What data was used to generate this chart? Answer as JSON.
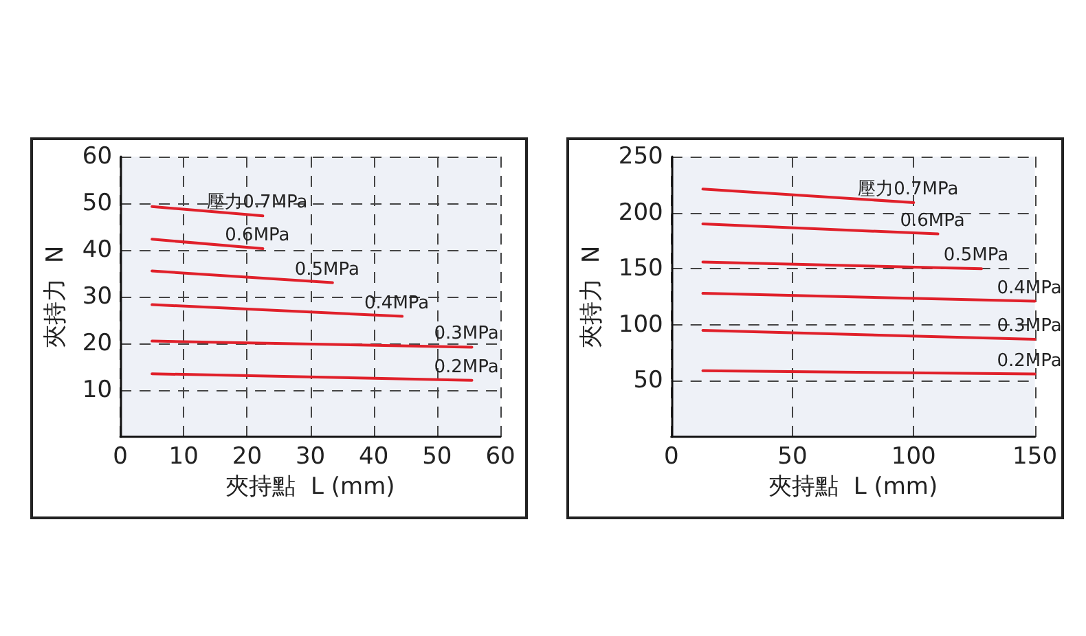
{
  "chart_data": [
    {
      "type": "line",
      "xlabel": "夾持點  L (mm)",
      "ylabel": "夾持力  N",
      "xlim": [
        0,
        60
      ],
      "ylim": [
        0,
        60
      ],
      "xticks": [
        0,
        10,
        20,
        30,
        40,
        50,
        60
      ],
      "yticks": [
        10,
        20,
        30,
        40,
        50,
        60
      ],
      "grid": true,
      "legend": false,
      "marker": "none",
      "line_style": "solid",
      "series": [
        {
          "name": "壓力0.7MPa",
          "color": "#e0202a",
          "x": [
            5,
            22.5
          ],
          "values": [
            49.3,
            47.3
          ]
        },
        {
          "name": "0.6MPa",
          "color": "#e0202a",
          "x": [
            5,
            22.5
          ],
          "values": [
            42.3,
            40.3
          ]
        },
        {
          "name": "0.5MPa",
          "color": "#e0202a",
          "x": [
            5,
            33.5
          ],
          "values": [
            35.5,
            33
          ]
        },
        {
          "name": "0.4MPa",
          "color": "#e0202a",
          "x": [
            5,
            44.5
          ],
          "values": [
            28.3,
            25.8
          ]
        },
        {
          "name": "0.3MPa",
          "color": "#e0202a",
          "x": [
            5,
            55.5
          ],
          "values": [
            20.5,
            19.2
          ]
        },
        {
          "name": "0.2MPa",
          "color": "#e0202a",
          "x": [
            5,
            55.5
          ],
          "values": [
            13.5,
            12.1
          ]
        }
      ]
    },
    {
      "type": "line",
      "xlabel": "夾持點  L (mm)",
      "ylabel": "夾持力  N",
      "xlim": [
        0,
        150
      ],
      "ylim": [
        0,
        250
      ],
      "xticks": [
        0,
        50,
        100,
        150
      ],
      "yticks": [
        50,
        100,
        150,
        200,
        250
      ],
      "grid": true,
      "legend": false,
      "marker": "none",
      "line_style": "solid",
      "series": [
        {
          "name": "壓力0.7MPa",
          "color": "#e0202a",
          "x": [
            13,
            100
          ],
          "values": [
            221,
            209
          ]
        },
        {
          "name": "0.6MPa",
          "color": "#e0202a",
          "x": [
            13,
            110
          ],
          "values": [
            190,
            181
          ]
        },
        {
          "name": "0.5MPa",
          "color": "#e0202a",
          "x": [
            13,
            128
          ],
          "values": [
            156,
            150
          ]
        },
        {
          "name": "0.4MPa",
          "color": "#e0202a",
          "x": [
            13,
            150
          ],
          "values": [
            128,
            121
          ]
        },
        {
          "name": "0.3MPa",
          "color": "#e0202a",
          "x": [
            13,
            150
          ],
          "values": [
            95,
            87
          ]
        },
        {
          "name": "0.2MPa",
          "color": "#e0202a",
          "x": [
            13,
            150
          ],
          "values": [
            59,
            56
          ]
        }
      ]
    }
  ]
}
